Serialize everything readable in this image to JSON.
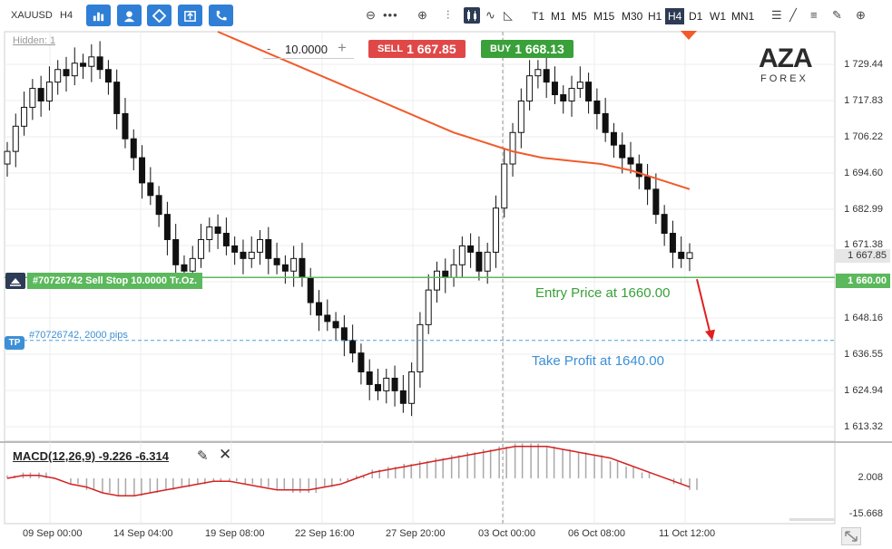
{
  "toolbar": {
    "symbol": "XAUUSD",
    "timeframe": "H4",
    "timeframes": [
      "T1",
      "M1",
      "M5",
      "M15",
      "M30",
      "H1",
      "H4",
      "D1",
      "W1",
      "MN1"
    ],
    "active_timeframe": "H4",
    "buttons": [
      "bar-chart-icon",
      "user-icon",
      "diamond-icon",
      "export-icon",
      "phone-icon"
    ]
  },
  "hidden_label": "Hidden: 1",
  "trade": {
    "quantity": "10.0000",
    "minus": "-",
    "plus": "+",
    "sell_label": "SELL",
    "sell_price": "1 667.85",
    "buy_label": "BUY",
    "buy_price": "1 668.13",
    "sell_color": "#e04848",
    "buy_color": "#3aa03a"
  },
  "logo": {
    "main": "AZA",
    "sub": "FOREX"
  },
  "price_axis": [
    "1 729.44",
    "1 717.83",
    "1 706.22",
    "1 694.60",
    "1 682.99",
    "1 671.38",
    "1 648.16",
    "1 636.55",
    "1 624.94",
    "1 613.32"
  ],
  "current_price": "1 667.85",
  "entry_axis_label": "1 660.00",
  "order_label": "#70726742 Sell Stop 10.0000 Tr.Oz.",
  "tp_badge": "TP",
  "tp_label": "#70726742, 2000 pips",
  "entry_annotation": "Entry Price at 1660.00",
  "tp_annotation": "Take Profit at 1640.00",
  "macd": {
    "label": "MACD(12,26,9) -9.226 -6.314",
    "axis": [
      "2.008",
      "-15.668"
    ]
  },
  "time_axis": [
    "09 Sep 00:00",
    "14 Sep 04:00",
    "19 Sep 08:00",
    "22 Sep 16:00",
    "27 Sep 20:00",
    "03 Oct 00:00",
    "06 Oct 08:00",
    "11 Oct 12:00"
  ],
  "chart_data": {
    "type": "candlestick",
    "symbol": "XAUUSD",
    "timeframe": "H4",
    "closes": [
      1700,
      1708,
      1714,
      1720,
      1716,
      1722,
      1726,
      1724,
      1728,
      1727,
      1730,
      1726,
      1722,
      1712,
      1704,
      1698,
      1690,
      1686,
      1680,
      1672,
      1664,
      1662,
      1666,
      1672,
      1676,
      1674,
      1670,
      1668,
      1666,
      1668,
      1672,
      1666,
      1664,
      1662,
      1666,
      1660,
      1652,
      1648,
      1646,
      1644,
      1640,
      1636,
      1630,
      1626,
      1624,
      1628,
      1624,
      1620,
      1630,
      1645,
      1656,
      1662,
      1660,
      1664,
      1670,
      1668,
      1662,
      1668,
      1682,
      1696,
      1706,
      1716,
      1724,
      1726,
      1722,
      1718,
      1716,
      1720,
      1722,
      1716,
      1712,
      1706,
      1702,
      1698,
      1696,
      1692,
      1688,
      1680,
      1674,
      1668,
      1666,
      1667.85
    ],
    "moving_average": [
      1738,
      1734,
      1730,
      1726,
      1722,
      1718,
      1714,
      1710,
      1706,
      1703,
      1700,
      1698,
      1697,
      1696,
      1694,
      1691,
      1688
    ],
    "macd_histogram": [
      1,
      2,
      2,
      0,
      -2,
      -4,
      -5,
      -6,
      -6,
      -5,
      -4,
      -3,
      -2,
      -1,
      -1,
      -2,
      -3,
      -4,
      -5,
      -5,
      -3,
      -1,
      1,
      3,
      4,
      5,
      6,
      7,
      8,
      9,
      10,
      11,
      12,
      12,
      11,
      10,
      9,
      8,
      6,
      4,
      2,
      0,
      -2,
      -4
    ],
    "macd_signal": [
      0,
      1,
      1,
      0,
      -2,
      -3,
      -5,
      -6,
      -6,
      -5,
      -4,
      -3,
      -2,
      -1,
      -1,
      -2,
      -3,
      -4,
      -4,
      -4,
      -3,
      -2,
      0,
      2,
      3,
      4,
      5,
      6,
      7,
      8,
      9,
      10,
      11,
      11,
      11,
      10,
      9,
      8,
      7,
      5,
      3,
      1,
      -1,
      -3
    ],
    "ylim": [
      1608,
      1738
    ],
    "entry_price": 1660.0,
    "take_profit": 1640.0,
    "sell_price": 1667.85,
    "buy_price": 1668.13,
    "colors": {
      "ma": "#f25a2a",
      "entry": "#5cb85c",
      "tp": "#4a9fd8",
      "macd_signal": "#d62020",
      "macd_hist": "#a9a9a9"
    }
  }
}
